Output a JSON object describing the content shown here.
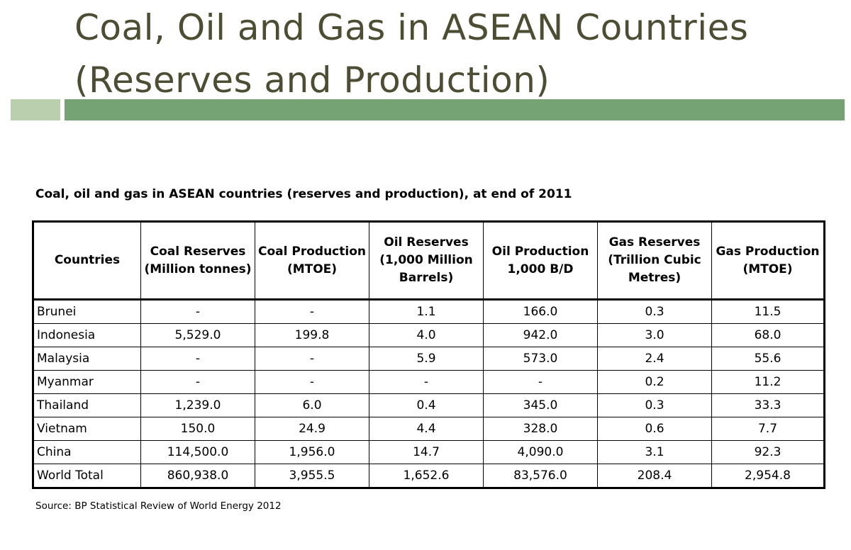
{
  "slide": {
    "title_line1": "Coal, Oil and Gas in ASEAN Countries",
    "title_line2": "(Reserves and Production)"
  },
  "table": {
    "caption": "Coal, oil and gas in ASEAN countries (reserves and production), at end of 2011",
    "headers": [
      "Countries",
      "Coal Reserves (Million tonnes)",
      "Coal Production (MTOE)",
      "Oil Reserves (1,000 Million Barrels)",
      "Oil Production 1,000 B/D",
      "Gas Reserves (Trillion Cubic Metres)",
      "Gas Production (MTOE)"
    ],
    "rows": [
      [
        "Brunei",
        "-",
        "-",
        "1.1",
        "166.0",
        "0.3",
        "11.5"
      ],
      [
        "Indonesia",
        "5,529.0",
        "199.8",
        "4.0",
        "942.0",
        "3.0",
        "68.0"
      ],
      [
        "Malaysia",
        "-",
        "-",
        "5.9",
        "573.0",
        "2.4",
        "55.6"
      ],
      [
        "Myanmar",
        "-",
        "-",
        "-",
        "-",
        "0.2",
        "11.2"
      ],
      [
        "Thailand",
        "1,239.0",
        "6.0",
        "0.4",
        "345.0",
        "0.3",
        "33.3"
      ],
      [
        "Vietnam",
        "150.0",
        "24.9",
        "4.4",
        "328.0",
        "0.6",
        "7.7"
      ],
      [
        "China",
        "114,500.0",
        "1,956.0",
        "14.7",
        "4,090.0",
        "3.1",
        "92.3"
      ],
      [
        "World Total",
        "860,938.0",
        "3,955.5",
        "1,652.6",
        "83,576.0",
        "208.4",
        "2,954.8"
      ]
    ],
    "source": "Source: BP Statistical Review of World Energy 2012"
  },
  "colors": {
    "title_text": "#4d4d34",
    "accent_bar_light": "#b9cfad",
    "accent_bar_dark": "#76a374"
  }
}
